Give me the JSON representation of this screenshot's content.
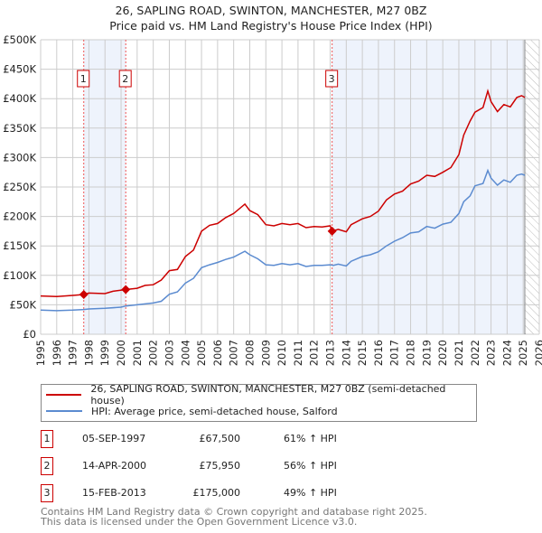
{
  "chart_data": {
    "type": "line",
    "title": "26, SAPLING ROAD, SWINTON, MANCHESTER, M27 0BZ",
    "subtitle": "Price paid vs. HM Land Registry's House Price Index (HPI)",
    "xlim": [
      1995,
      2026
    ],
    "ylim": [
      0,
      500000
    ],
    "x_ticks": [
      "1995",
      "1996",
      "1997",
      "1998",
      "1999",
      "2000",
      "2001",
      "2002",
      "2003",
      "2004",
      "2005",
      "2006",
      "2007",
      "2008",
      "2009",
      "2010",
      "2011",
      "2012",
      "2013",
      "2014",
      "2015",
      "2016",
      "2017",
      "2018",
      "2019",
      "2020",
      "2021",
      "2022",
      "2023",
      "2024",
      "2025",
      "2026"
    ],
    "y_ticks": [
      {
        "v": 0,
        "label": "£0"
      },
      {
        "v": 50000,
        "label": "£50K"
      },
      {
        "v": 100000,
        "label": "£100K"
      },
      {
        "v": 150000,
        "label": "£150K"
      },
      {
        "v": 200000,
        "label": "£200K"
      },
      {
        "v": 250000,
        "label": "£250K"
      },
      {
        "v": 300000,
        "label": "£300K"
      },
      {
        "v": 350000,
        "label": "£350K"
      },
      {
        "v": 400000,
        "label": "£400K"
      },
      {
        "v": 450000,
        "label": "£450K"
      },
      {
        "v": 500000,
        "label": "£500K"
      }
    ],
    "grid": true,
    "data_end": 2025.1,
    "series": [
      {
        "name": "26, SAPLING ROAD, SWINTON, MANCHESTER, M27 0BZ (semi-detached house)",
        "color": "#cc0000",
        "x": [
          1995,
          1996,
          1997,
          1997.68,
          1998,
          1999,
          1999.5,
          2000.29,
          2001,
          2001.5,
          2002,
          2002.5,
          2003,
          2003.5,
          2004,
          2004.5,
          2005,
          2005.5,
          2006,
          2006.5,
          2007,
          2007.7,
          2008,
          2008.5,
          2009,
          2009.5,
          2010,
          2010.5,
          2011,
          2011.5,
          2012,
          2012.5,
          2013,
          2013.12,
          2013.5,
          2014,
          2014.3,
          2015,
          2015.5,
          2016,
          2016.5,
          2017,
          2017.5,
          2018,
          2018.5,
          2019,
          2019.5,
          2020,
          2020.5,
          2021,
          2021.3,
          2021.7,
          2022,
          2022.5,
          2022.8,
          2023,
          2023.4,
          2023.8,
          2024.2,
          2024.6,
          2024.9,
          2025.1
        ],
        "y": [
          65000,
          64000,
          66000,
          67500,
          70000,
          69000,
          73000,
          75950,
          78000,
          83000,
          84000,
          92000,
          108000,
          110000,
          132000,
          143000,
          175000,
          185000,
          188000,
          198000,
          205000,
          221000,
          210000,
          203000,
          186000,
          184000,
          188000,
          186000,
          188000,
          181000,
          183000,
          182000,
          184000,
          175000,
          178000,
          174000,
          186000,
          196000,
          200000,
          209000,
          228000,
          238000,
          243000,
          255000,
          260000,
          270000,
          268000,
          275000,
          283000,
          305000,
          338000,
          362000,
          377000,
          385000,
          413000,
          395000,
          378000,
          390000,
          386000,
          402000,
          405000,
          402000
        ]
      },
      {
        "name": "HPI: Average price, semi-detached house, Salford",
        "color": "#5b8bd0",
        "x": [
          1995,
          1996,
          1997,
          1997.68,
          1998,
          1999,
          2000,
          2000.29,
          2001,
          2002,
          2002.5,
          2003,
          2003.5,
          2004,
          2004.5,
          2005,
          2005.5,
          2006,
          2006.5,
          2007,
          2007.7,
          2008,
          2008.5,
          2009,
          2009.5,
          2010,
          2010.5,
          2011,
          2011.5,
          2012,
          2012.5,
          2013,
          2013.2,
          2013.5,
          2014,
          2014.3,
          2015,
          2015.5,
          2016,
          2016.5,
          2017,
          2017.5,
          2018,
          2018.5,
          2019,
          2019.5,
          2020,
          2020.5,
          2021,
          2021.3,
          2021.7,
          2022,
          2022.5,
          2022.8,
          2023,
          2023.4,
          2023.8,
          2024.2,
          2024.6,
          2024.9,
          2025.1
        ],
        "y": [
          41000,
          40000,
          41000,
          42000,
          43000,
          44000,
          46000,
          48000,
          50000,
          53000,
          56000,
          68000,
          72000,
          87000,
          95000,
          113000,
          118000,
          122000,
          127000,
          131000,
          141000,
          135000,
          128000,
          118000,
          117000,
          120000,
          118000,
          120000,
          115000,
          117000,
          117000,
          118000,
          117000,
          119000,
          116000,
          124000,
          132000,
          135000,
          140000,
          150000,
          158000,
          164000,
          172000,
          174000,
          183000,
          180000,
          187000,
          190000,
          205000,
          225000,
          235000,
          252000,
          256000,
          278000,
          265000,
          253000,
          262000,
          258000,
          270000,
          272000,
          270000
        ]
      }
    ],
    "sales": [
      {
        "n": "1",
        "x": 1997.68,
        "price": 67500,
        "date": "05-SEP-1997",
        "price_label": "£67,500",
        "hpi": "61% ↑ HPI"
      },
      {
        "n": "2",
        "x": 2000.29,
        "price": 75950,
        "date": "14-APR-2000",
        "price_label": "£75,950",
        "hpi": "56% ↑ HPI"
      },
      {
        "n": "3",
        "x": 2013.12,
        "price": 175000,
        "date": "15-FEB-2013",
        "price_label": "£175,000",
        "hpi": "49% ↑ HPI"
      }
    ],
    "legend": {
      "placement": "below",
      "items": [
        "26, SAPLING ROAD, SWINTON, MANCHESTER, M27 0BZ (semi-detached house)",
        "HPI: Average price, semi-detached house, Salford"
      ]
    }
  },
  "footer": {
    "line1": "Contains HM Land Registry data © Crown copyright and database right 2025.",
    "line2": "This data is licensed under the Open Government Licence v3.0."
  }
}
